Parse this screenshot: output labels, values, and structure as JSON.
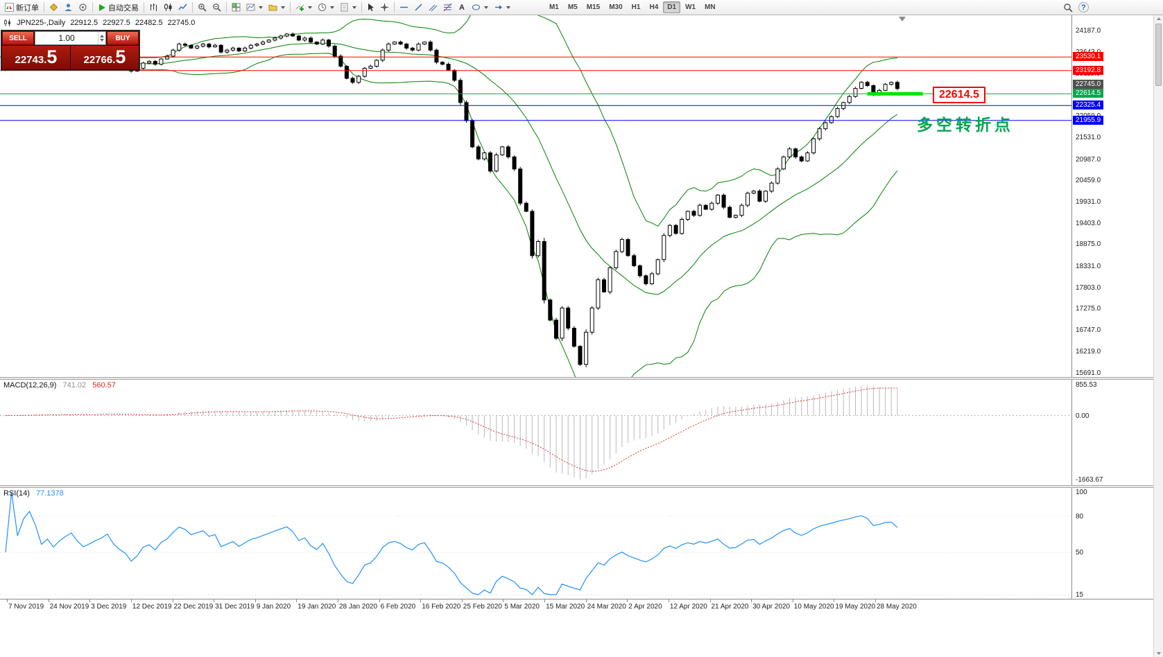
{
  "toolbar": {
    "new_order_label": "新订单",
    "autotrade_label": "自动交易",
    "timeframes": [
      "M1",
      "M5",
      "M15",
      "M30",
      "H1",
      "H4",
      "D1",
      "W1",
      "MN"
    ],
    "active_timeframe": "D1",
    "text_tool_glyph": "A",
    "help_glyph": "?"
  },
  "chart_header": {
    "symbol": "JPN225-,Daily",
    "open": "22912.5",
    "high": "22927.5",
    "low": "22482.5",
    "close": "22745.0"
  },
  "trade_panel": {
    "sell_label": "SELL",
    "buy_label": "BUY",
    "volume": "1.00",
    "sell_price_main": "22743.",
    "sell_price_big": "5",
    "buy_price_main": "22766.",
    "buy_price_big": "5"
  },
  "annotations": {
    "highlight_price_label": "22614.5",
    "turning_point_note": "多空转折点",
    "note_color": "#00a651",
    "highlight_color": "#00e400"
  },
  "chart_data": {
    "type": "candlestick",
    "title": "JPN225- Daily with Bollinger Bands, MACD(12,26,9) and RSI(14)",
    "price_axis": {
      "max": 24187.0,
      "min": 15691.0,
      "ticks": [
        "24187.0",
        "23643.0",
        "23115.0",
        "22587.0",
        "22059.0",
        "21531.0",
        "20987.0",
        "20459.0",
        "19931.0",
        "19403.0",
        "18875.0",
        "18331.0",
        "17803.0",
        "17275.0",
        "16747.0",
        "16219.0",
        "15691.0"
      ]
    },
    "dates": [
      "7 Nov 2019",
      "24 Nov 2019",
      "3 Dec 2019",
      "12 Dec 2019",
      "22 Dec 2019",
      "31 Dec 2019",
      "9 Jan 2020",
      "19 Jan 2020",
      "28 Jan 2020",
      "6 Feb 2020",
      "16 Feb 2020",
      "25 Feb 2020",
      "5 Mar 2020",
      "15 Mar 2020",
      "24 Mar 2020",
      "2 Apr 2020",
      "12 Apr 2020",
      "21 Apr 2020",
      "30 Apr 2020",
      "10 May 2020",
      "19 May 2020",
      "28 May 2020"
    ],
    "candlestick": {
      "closes": [
        23250,
        23320,
        23280,
        23350,
        23420,
        23380,
        23300,
        23340,
        23290,
        23350,
        23400,
        23450,
        23380,
        23320,
        23360,
        23410,
        23450,
        23520,
        23420,
        23350,
        23300,
        23180,
        23250,
        23380,
        23420,
        23350,
        23480,
        23550,
        23700,
        23850,
        23820,
        23750,
        23800,
        23850,
        23780,
        23820,
        23650,
        23700,
        23750,
        23680,
        23750,
        23820,
        23850,
        23900,
        23950,
        24000,
        24050,
        24100,
        24050,
        23950,
        24000,
        23900,
        23850,
        23950,
        23800,
        23550,
        23300,
        23000,
        22900,
        23050,
        23250,
        23300,
        23450,
        23700,
        23850,
        23900,
        23850,
        23750,
        23700,
        23850,
        23900,
        23700,
        23400,
        23350,
        23200,
        22950,
        22400,
        21950,
        21300,
        21000,
        21150,
        20700,
        21100,
        21300,
        21050,
        20750,
        19900,
        19700,
        18600,
        18950,
        17500,
        17000,
        16550,
        17300,
        16800,
        16350,
        15900,
        16700,
        17300,
        18000,
        17700,
        18300,
        18700,
        19000,
        18600,
        18350,
        18100,
        17900,
        18150,
        18500,
        19100,
        19350,
        19150,
        19500,
        19700,
        19600,
        19850,
        19750,
        19900,
        20100,
        19800,
        19550,
        19600,
        19850,
        20150,
        20200,
        19950,
        20200,
        20400,
        20750,
        21050,
        21250,
        21050,
        20950,
        21150,
        21500,
        21750,
        21900,
        22050,
        22250,
        22400,
        22550,
        22750,
        22900,
        22820,
        22600,
        22700,
        22850,
        22900,
        22745
      ]
    },
    "bollinger": {
      "period": 20,
      "deviation": 2,
      "color": "#008000"
    },
    "horizontal_lines": [
      {
        "price": 23530.1,
        "label": "23530.1",
        "color": "#ff0000"
      },
      {
        "price": 23192.8,
        "label": "23192.8",
        "color": "#ff0000"
      },
      {
        "price": 22614.5,
        "label": "22614.5",
        "color": "#00a94f"
      },
      {
        "price": 22325.4,
        "label": "22325.4",
        "color": "#0000ff"
      },
      {
        "price": 21955.9,
        "label": "21955.9",
        "color": "#0000ff"
      }
    ],
    "current_price": {
      "price": 22745.0,
      "label": "22745.0",
      "color": "#505050"
    },
    "macd": {
      "name": "MACD(12,26,9)",
      "value_main": "741.02",
      "value_signal": "560.57",
      "scale_top": "855.53",
      "scale_zero": "0.00",
      "scale_bottom": "-1663.67"
    },
    "rsi": {
      "name": "RSI(14)",
      "value": "77.1378",
      "scale": [
        {
          "v": 100,
          "label": "100"
        },
        {
          "v": 80,
          "label": "80"
        },
        {
          "v": 50,
          "label": "50"
        },
        {
          "v": 15,
          "label": "15"
        }
      ]
    }
  }
}
